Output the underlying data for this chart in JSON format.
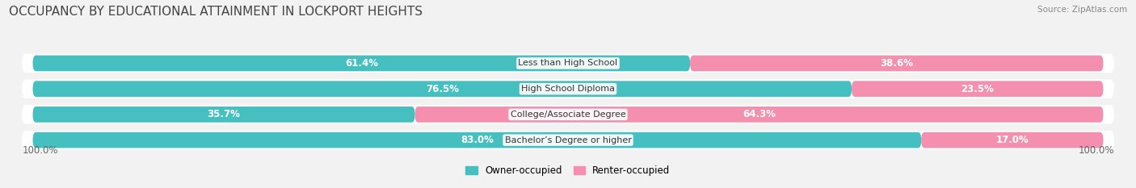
{
  "title": "OCCUPANCY BY EDUCATIONAL ATTAINMENT IN LOCKPORT HEIGHTS",
  "source": "Source: ZipAtlas.com",
  "categories": [
    "Less than High School",
    "High School Diploma",
    "College/Associate Degree",
    "Bachelor’s Degree or higher"
  ],
  "owner_values": [
    61.4,
    76.5,
    35.7,
    83.0
  ],
  "renter_values": [
    38.6,
    23.5,
    64.3,
    17.0
  ],
  "owner_color": "#45BFBF",
  "renter_color": "#F48FAF",
  "owner_label_color": "#ffffff",
  "renter_label_color": "#ffffff",
  "owner_label_color_outside": "#888888",
  "renter_label_color_outside": "#888888",
  "bg_color": "#f2f2f2",
  "bar_bg_color": "#ffffff",
  "bar_border_color": "#e0e0e0",
  "axis_label_left": "100.0%",
  "axis_label_right": "100.0%",
  "legend_owner": "Owner-occupied",
  "legend_renter": "Renter-occupied",
  "title_fontsize": 11,
  "bar_label_fontsize": 8.5,
  "category_fontsize": 8,
  "legend_fontsize": 8.5,
  "axis_fontsize": 8.5,
  "source_fontsize": 7.5
}
